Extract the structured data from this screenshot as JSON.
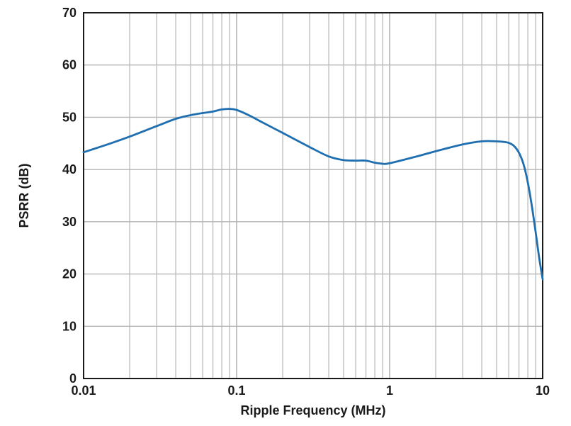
{
  "chart_data": {
    "type": "line",
    "title": "",
    "xlabel": "Ripple Frequency (MHz)",
    "ylabel": "PSRR (dB)",
    "x_scale": "log",
    "xlim": [
      0.01,
      10
    ],
    "ylim": [
      0,
      70
    ],
    "x_ticks": [
      0.01,
      0.1,
      1,
      10
    ],
    "x_tick_labels": [
      "0.01",
      "0.1",
      "1",
      "10"
    ],
    "y_ticks": [
      0,
      10,
      20,
      30,
      40,
      50,
      60,
      70
    ],
    "y_tick_labels": [
      "0",
      "10",
      "20",
      "30",
      "40",
      "50",
      "60",
      "70"
    ],
    "grid": true,
    "line_color": "#1f6fb0",
    "grid_color": "#b5b5b5",
    "series": [
      {
        "x": [
          0.01,
          0.015,
          0.02,
          0.03,
          0.04,
          0.05,
          0.06,
          0.07,
          0.08,
          0.09,
          0.1,
          0.12,
          0.15,
          0.2,
          0.3,
          0.4,
          0.5,
          0.6,
          0.7,
          0.8,
          0.9,
          1.0,
          1.5,
          2,
          3,
          4,
          5,
          5.5,
          6,
          6.5,
          7,
          7.5,
          8,
          8.5,
          9,
          9.5,
          10
        ],
        "y": [
          43.3,
          45.0,
          46.3,
          48.3,
          49.7,
          50.4,
          50.8,
          51.1,
          51.5,
          51.6,
          51.4,
          50.4,
          48.9,
          47.0,
          44.3,
          42.5,
          41.8,
          41.7,
          41.7,
          41.3,
          41.1,
          41.2,
          42.5,
          43.5,
          44.8,
          45.4,
          45.4,
          45.3,
          45.1,
          44.5,
          43.2,
          41.0,
          37.5,
          33.0,
          28.0,
          23.0,
          19.0
        ]
      }
    ]
  }
}
